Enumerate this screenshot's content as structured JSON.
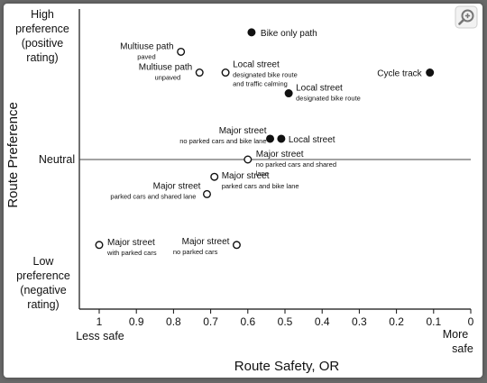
{
  "chart_data": {
    "type": "scatter",
    "title": "",
    "xlabel": "Route Safety, OR",
    "ylabel": "Route Preference",
    "xlim": [
      1.0,
      0.0
    ],
    "x_reversed": true,
    "x_ticks": [
      "1",
      "0.9",
      "0.8",
      "0.7",
      "0.6",
      "0.5",
      "0.4",
      "0.3",
      "0.2",
      "0.1",
      "0"
    ],
    "x_end_labels": {
      "left": "Less safe",
      "right_line1": "More",
      "right_line2": "safe"
    },
    "y_levels": {
      "high": [
        "High",
        "preference",
        "(positive",
        "rating)"
      ],
      "neutral": "Neutral",
      "low": [
        "Low",
        "preference",
        "(negative",
        "rating)"
      ]
    },
    "ylim": [
      -1.0,
      1.0
    ],
    "marker_legend": {
      "filled": "filled circle",
      "open": "open circle"
    },
    "points": [
      {
        "name": "Bike only path",
        "sub": "",
        "x": 0.59,
        "y": 0.98,
        "filled": true
      },
      {
        "name": "Multiuse path",
        "sub": "paved",
        "x": 0.78,
        "y": 0.83,
        "filled": false
      },
      {
        "name": "Multiuse path",
        "sub": "unpaved",
        "x": 0.73,
        "y": 0.67,
        "filled": false
      },
      {
        "name": "Local street",
        "sub": "designated bike route and traffic calming",
        "x": 0.66,
        "y": 0.67,
        "filled": false
      },
      {
        "name": "Cycle track",
        "sub": "",
        "x": 0.11,
        "y": 0.67,
        "filled": true
      },
      {
        "name": "Local street",
        "sub": "designated bike route",
        "x": 0.49,
        "y": 0.51,
        "filled": true
      },
      {
        "name": "Major street",
        "sub": "no parked cars and bike lane",
        "x": 0.54,
        "y": 0.16,
        "filled": true
      },
      {
        "name": "Local street",
        "sub": "",
        "x": 0.51,
        "y": 0.16,
        "filled": true
      },
      {
        "name": "Major street",
        "sub": "no parked cars and shared lane",
        "x": 0.6,
        "y": 0.0,
        "filled": false
      },
      {
        "name": "Major street",
        "sub": "parked cars and bike lane",
        "x": 0.69,
        "y": -0.16,
        "filled": false
      },
      {
        "name": "Major street",
        "sub": "parked cars and shared lane",
        "x": 0.71,
        "y": -0.32,
        "filled": false
      },
      {
        "name": "Major street",
        "sub": "with parked cars",
        "x": 1.0,
        "y": -0.79,
        "filled": false
      },
      {
        "name": "Major street",
        "sub": "no parked cars",
        "x": 0.63,
        "y": -0.79,
        "filled": false
      }
    ]
  },
  "ui": {
    "zoom_icon": "zoom-in-icon"
  }
}
